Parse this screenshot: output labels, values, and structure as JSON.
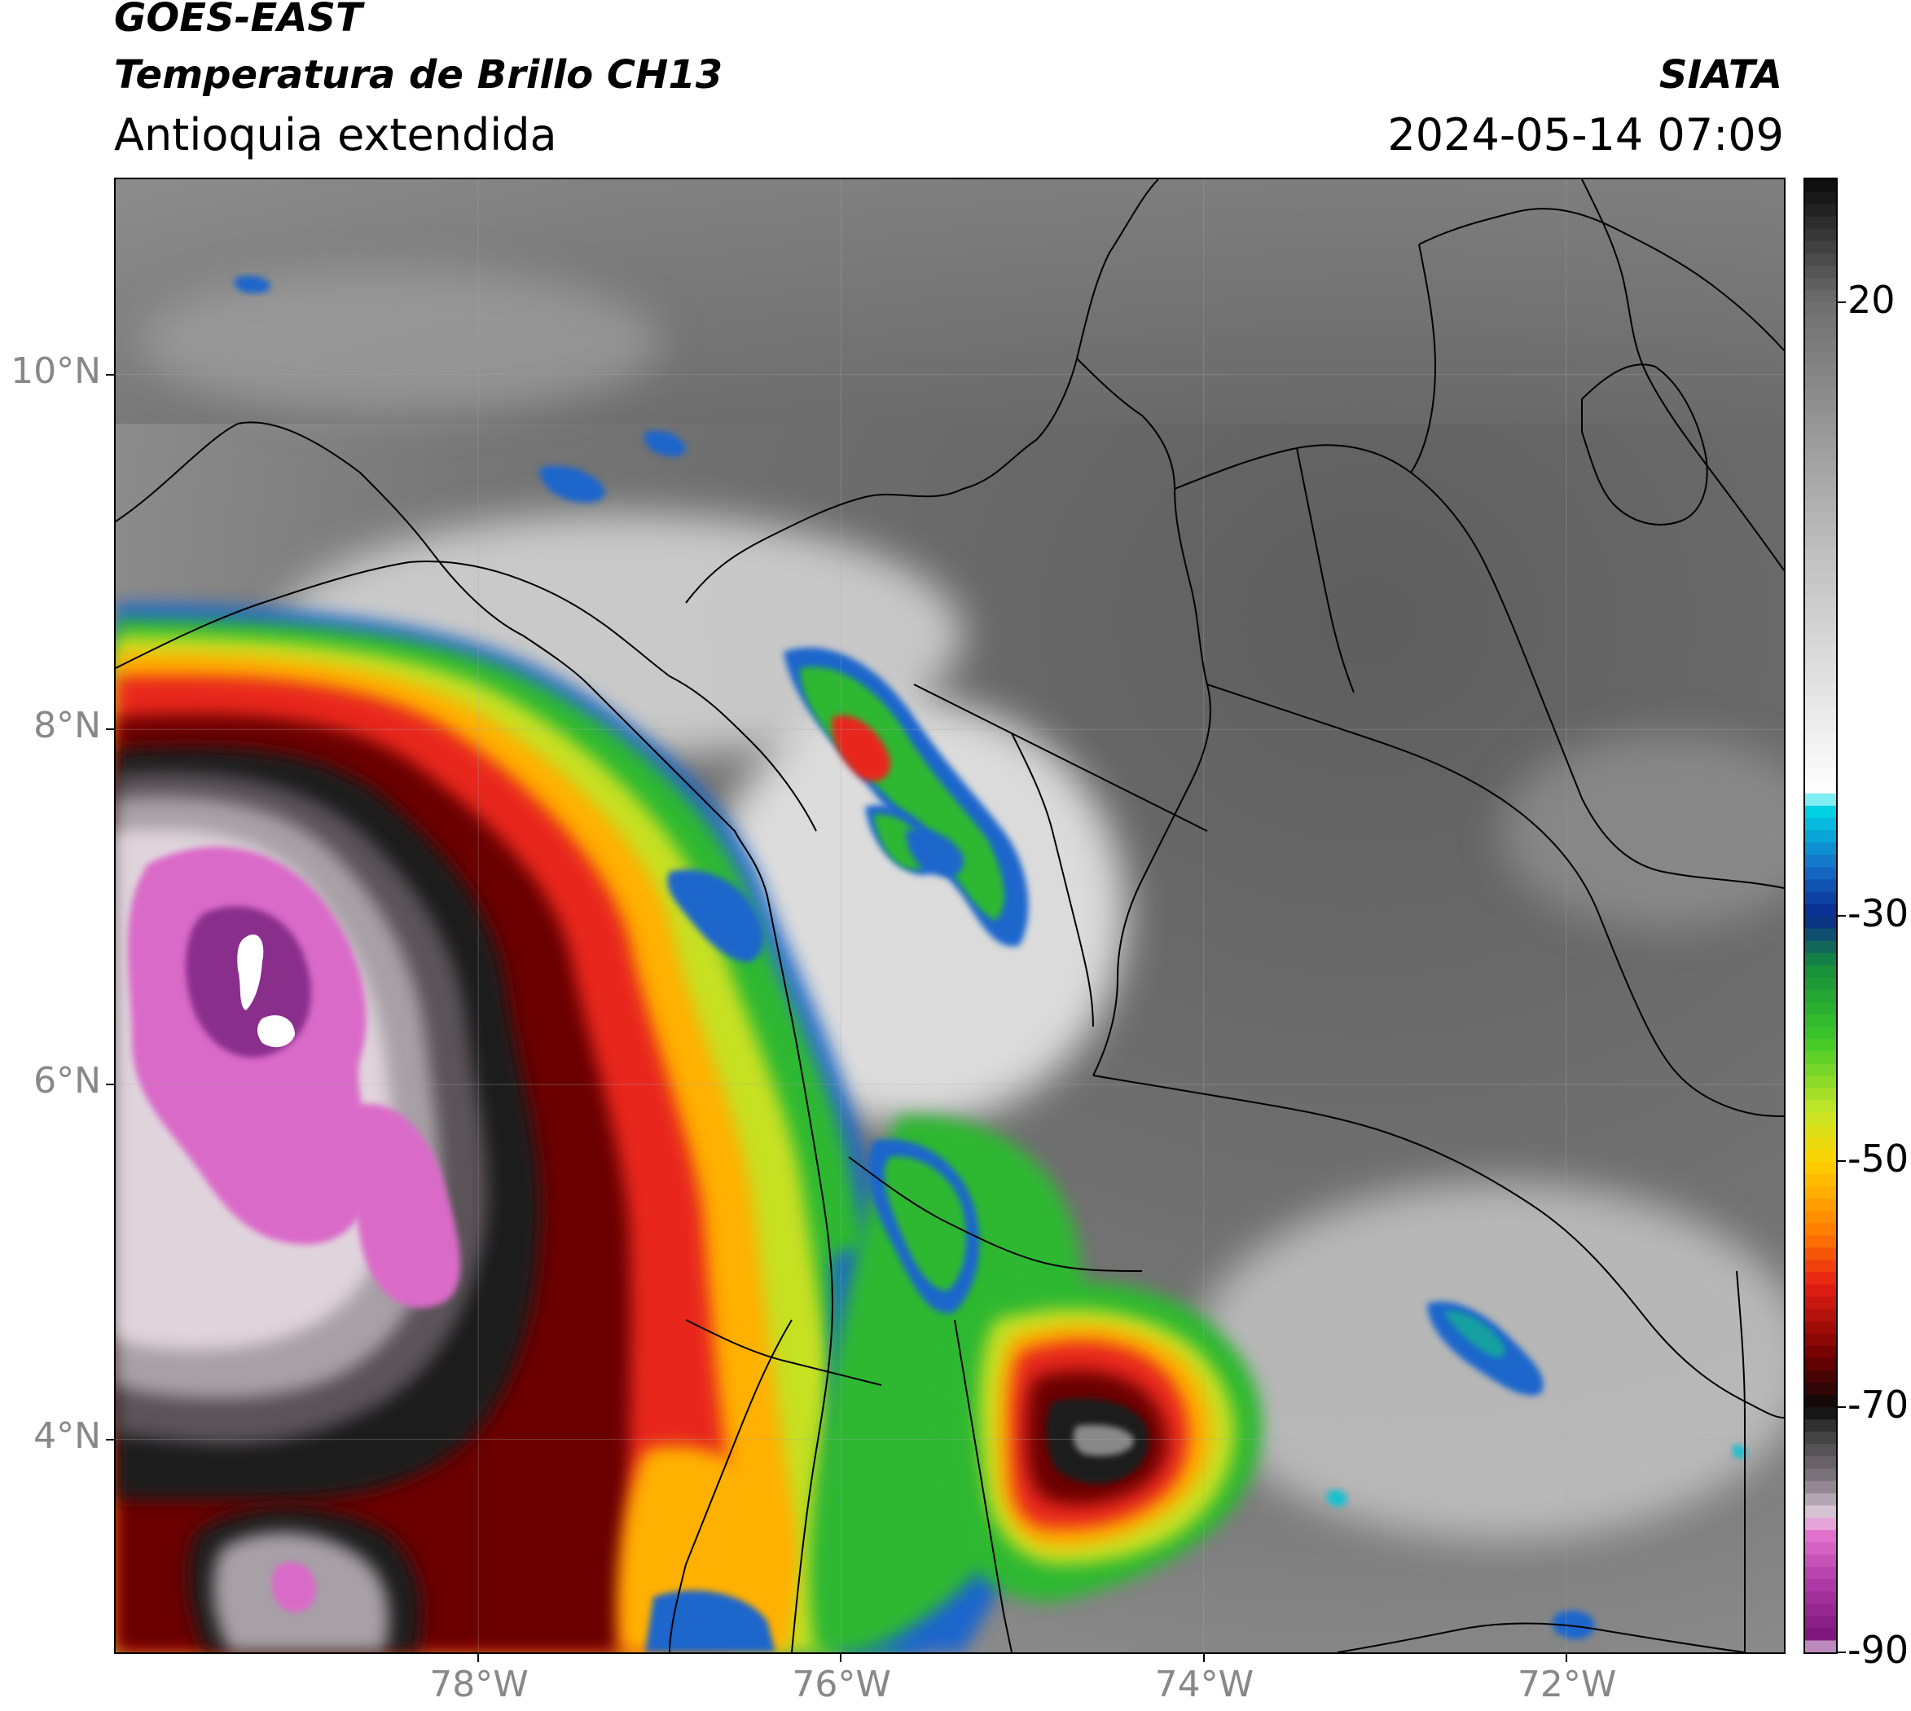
{
  "header": {
    "satellite": "GOES-EAST",
    "product": "Temperatura de Brillo CH13",
    "region": "Antioquia extendida",
    "agency": "SIATA",
    "datetime": "2024-05-14 07:09"
  },
  "map": {
    "lon_range": [
      -80.0,
      -70.8
    ],
    "lat_range": [
      2.8,
      11.1
    ],
    "lat_ticks": [
      {
        "value": 10,
        "label": "10°N"
      },
      {
        "value": 8,
        "label": "8°N"
      },
      {
        "value": 6,
        "label": "6°N"
      },
      {
        "value": 4,
        "label": "4°N"
      }
    ],
    "lon_ticks": [
      {
        "value": -78,
        "label": "78°W"
      },
      {
        "value": -76,
        "label": "76°W"
      },
      {
        "value": -74,
        "label": "74°W"
      },
      {
        "value": -72,
        "label": "72°W"
      }
    ]
  },
  "colorbar": {
    "range": [
      -90,
      30
    ],
    "ticks": [
      {
        "value": 20,
        "label": "20"
      },
      {
        "value": -30,
        "label": "-30"
      },
      {
        "value": -50,
        "label": "-50"
      },
      {
        "value": -70,
        "label": "-70"
      },
      {
        "value": -90,
        "label": "-90"
      }
    ]
  }
}
